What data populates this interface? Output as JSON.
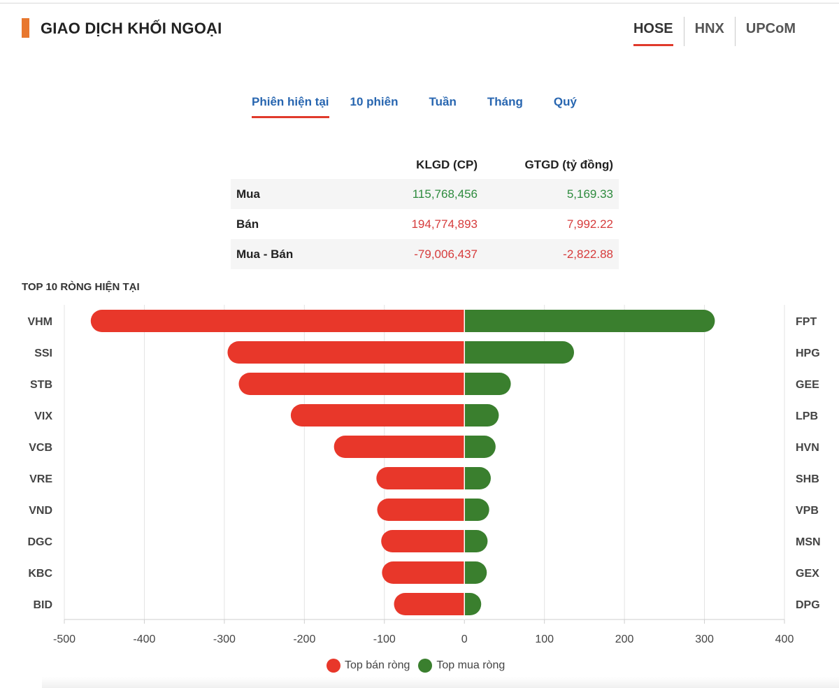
{
  "header": {
    "title": "GIAO DỊCH KHỐI NGOẠI",
    "exchanges": [
      "HOSE",
      "HNX",
      "UPCoM"
    ],
    "active_exchange": "HOSE"
  },
  "periods": {
    "items": [
      "Phiên hiện tại",
      "10 phiên",
      "Tuần",
      "Tháng",
      "Quý"
    ],
    "active": "Phiên hiện tại"
  },
  "summary": {
    "col_klgd": "KLGD (CP)",
    "col_gtgd": "GTGD (tỷ đồng)",
    "rows": [
      {
        "label": "Mua",
        "klgd": "115,768,456",
        "gtgd": "5,169.33"
      },
      {
        "label": "Bán",
        "klgd": "194,774,893",
        "gtgd": "7,992.22"
      },
      {
        "label": "Mua - Bán",
        "klgd": "-79,006,437",
        "gtgd": "-2,822.88"
      }
    ]
  },
  "chart_title": "TOP 10 RÒNG HIỆN TẠI",
  "chart_data": {
    "type": "bar",
    "orientation": "horizontal",
    "sell_categories": [
      "VHM",
      "SSI",
      "STB",
      "VIX",
      "VCB",
      "VRE",
      "VND",
      "DGC",
      "KBC",
      "BID"
    ],
    "buy_categories": [
      "FPT",
      "HPG",
      "GEE",
      "LPB",
      "HVN",
      "SHB",
      "VPB",
      "MSN",
      "GEX",
      "DPG"
    ],
    "series": [
      {
        "name": "Top bán ròng",
        "values": [
          -467,
          -296,
          -282,
          -217,
          -163,
          -110,
          -109,
          -104,
          -103,
          -88
        ]
      },
      {
        "name": "Top mua ròng",
        "values": [
          313,
          137,
          58,
          43,
          39,
          33,
          31,
          29,
          28,
          21
        ]
      }
    ],
    "xlim": [
      -500,
      400
    ],
    "xticks": [
      -500,
      -400,
      -300,
      -200,
      -100,
      0,
      100,
      200,
      300,
      400
    ],
    "grid": true,
    "legend_position": "bottom",
    "colors": {
      "sell": "#e8372a",
      "buy": "#3a7f2e"
    }
  }
}
